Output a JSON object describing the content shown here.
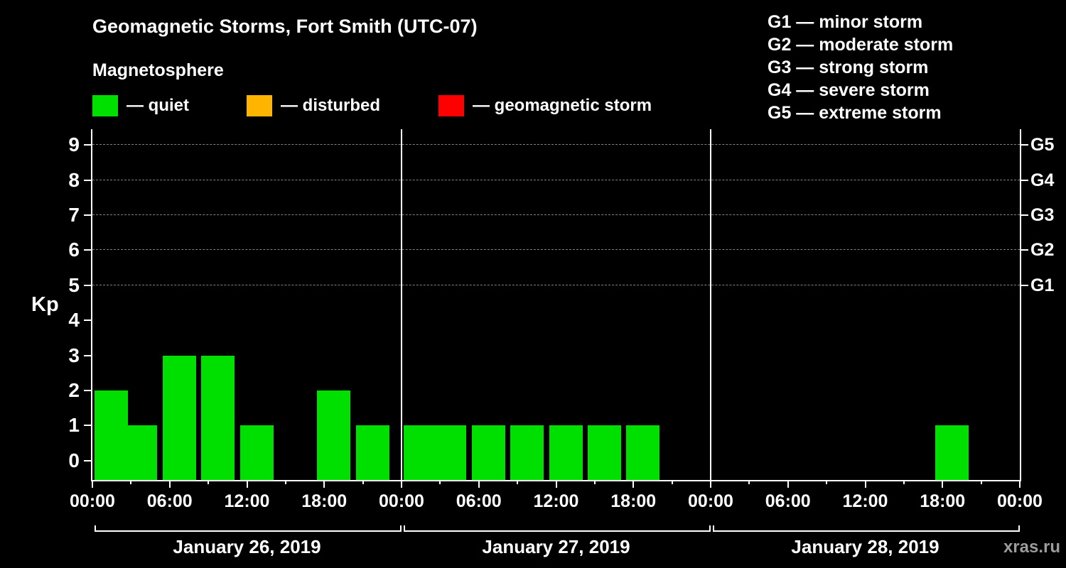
{
  "watermark": "xras.ru",
  "chart_data": {
    "type": "bar",
    "title": "Geomagnetic Storms, Fort Smith (UTC-07)",
    "subtitle": "Magnetosphere",
    "ylabel": "Kp",
    "ylim": [
      -0.55,
      9.45
    ],
    "y_ticks": [
      0,
      1,
      2,
      3,
      4,
      5,
      6,
      7,
      8,
      9
    ],
    "bar_color": "#00e000",
    "interval_hours": 3,
    "grid": "dashed horizontal lines at Kp 5-9",
    "legend_position": "top-left",
    "legend": {
      "items": [
        {
          "name": "quiet",
          "label": "— quiet",
          "color": "#00e000",
          "x": 130
        },
        {
          "name": "disturbed",
          "label": "— disturbed",
          "color": "#ffb400",
          "x": 347
        },
        {
          "name": "storm",
          "label": "— geomagnetic storm",
          "color": "#ff0000",
          "x": 617
        }
      ]
    },
    "g_levels": [
      {
        "label": "G1",
        "kp": 5,
        "legend_text": "G1 — minor storm"
      },
      {
        "label": "G2",
        "kp": 6,
        "legend_text": "G2 — moderate storm"
      },
      {
        "label": "G3",
        "kp": 7,
        "legend_text": "G3 — strong storm"
      },
      {
        "label": "G4",
        "kp": 8,
        "legend_text": "G4 — severe storm"
      },
      {
        "label": "G5",
        "kp": 9,
        "legend_text": "G5 — extreme storm"
      }
    ],
    "x_tick_labels_per_day": [
      "00:00",
      "06:00",
      "12:00",
      "18:00"
    ],
    "x_final_label": "00:00",
    "days": [
      {
        "date": "January 26, 2019",
        "kp": [
          2,
          1,
          3,
          3,
          1,
          0,
          2,
          1
        ]
      },
      {
        "date": "January 27, 2019",
        "kp": [
          1,
          1,
          1,
          1,
          1,
          1,
          1,
          0
        ]
      },
      {
        "date": "January 28, 2019",
        "kp": [
          0,
          0,
          0,
          0,
          0,
          0,
          1,
          0
        ]
      }
    ]
  }
}
